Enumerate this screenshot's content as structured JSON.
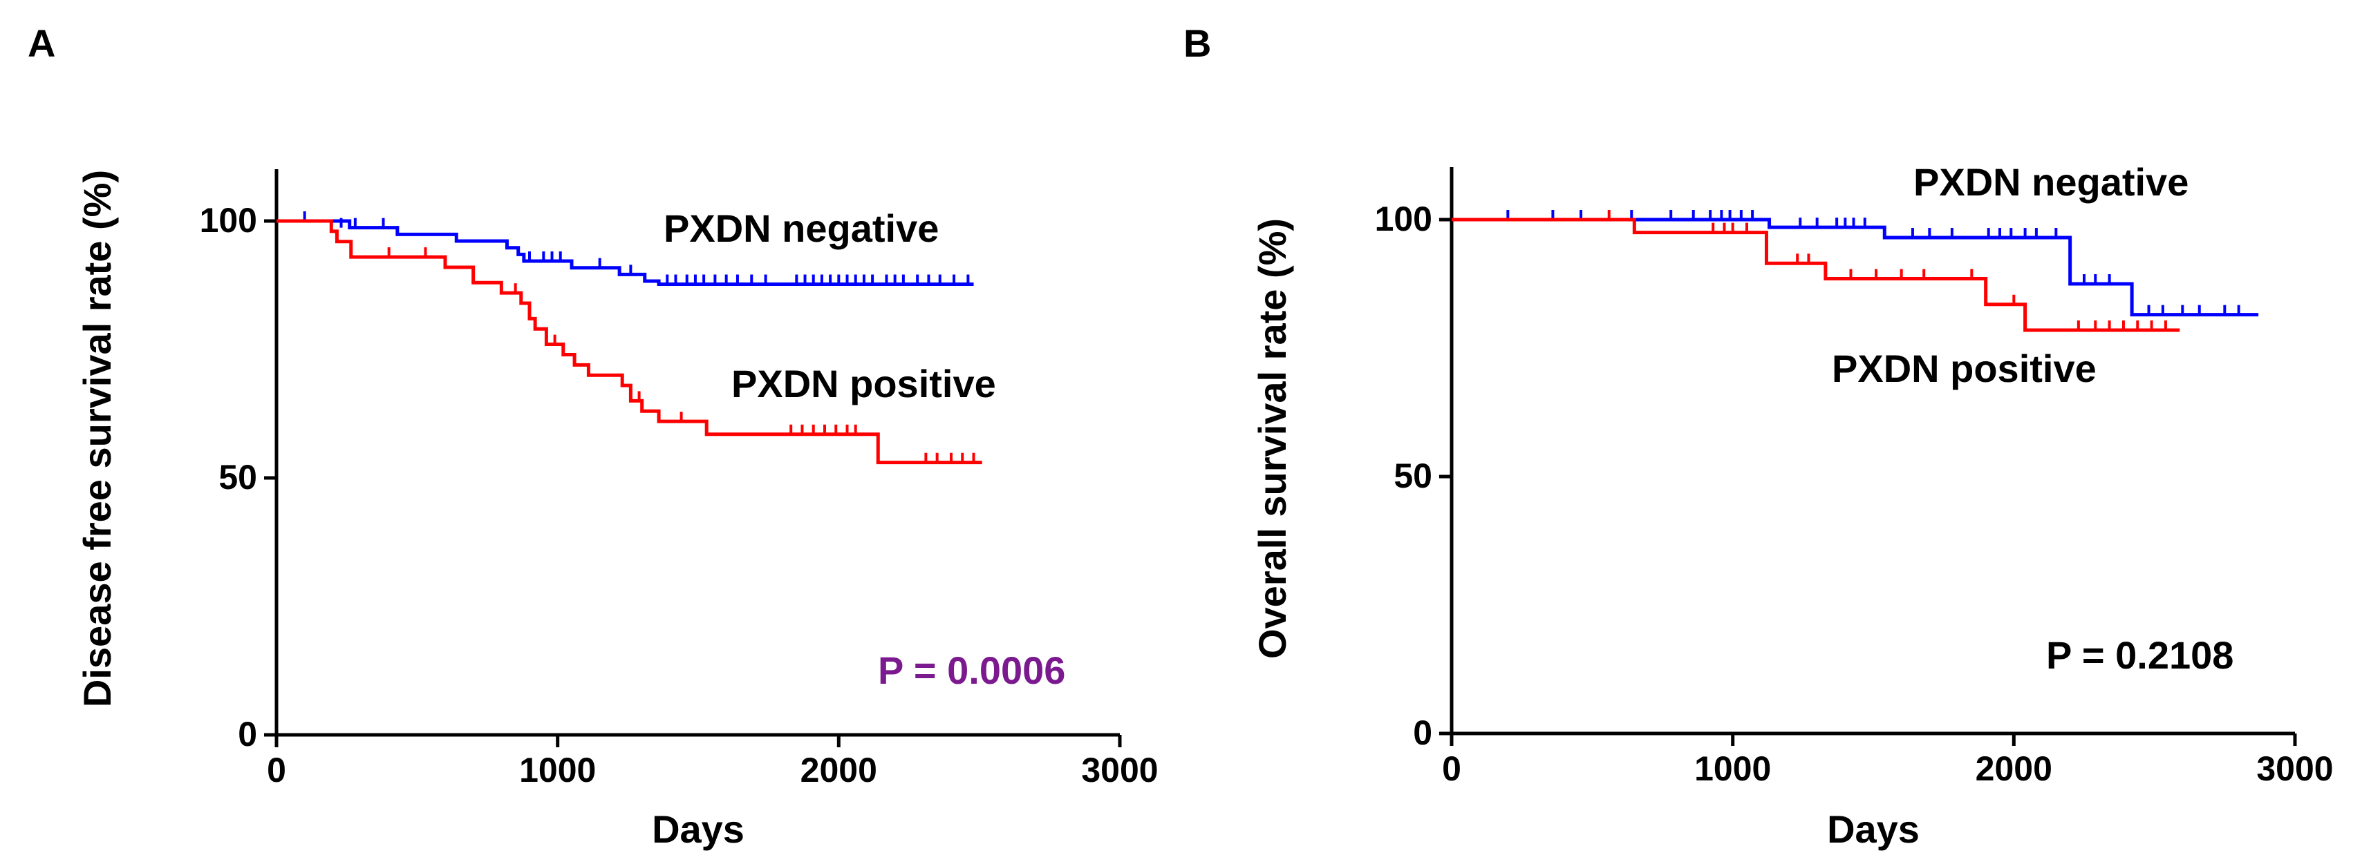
{
  "chart_data": [
    {
      "type": "line",
      "panel_label": "A",
      "xlabel": "Days",
      "ylabel": "Disease free survival rate (%)",
      "xlim": [
        0,
        3000
      ],
      "ylim": [
        0,
        110
      ],
      "xticks": [
        0,
        1000,
        2000,
        3000
      ],
      "yticks": [
        0,
        50,
        100
      ],
      "xtick_labels": [
        "0",
        "1000",
        "2000",
        "3000"
      ],
      "ytick_labels": [
        "0",
        "50",
        "100"
      ],
      "p_value": "P = 0.0006",
      "p_value_color": "#7b1a8f",
      "series": [
        {
          "name": "PXDN negative",
          "color": "#0000ff",
          "steps": [
            [
              0,
              100
            ],
            [
              260,
              98.7
            ],
            [
              430,
              97.4
            ],
            [
              640,
              96.1
            ],
            [
              820,
              94.8
            ],
            [
              860,
              93.5
            ],
            [
              880,
              92.2
            ],
            [
              1050,
              90.9
            ],
            [
              1220,
              89.6
            ],
            [
              1310,
              88.3
            ],
            [
              1360,
              87.7
            ],
            [
              2480,
              87.7
            ]
          ],
          "censors": [
            [
              100,
              100
            ],
            [
              230,
              98.7
            ],
            [
              280,
              98.7
            ],
            [
              380,
              98.7
            ],
            [
              900,
              92.2
            ],
            [
              950,
              92.2
            ],
            [
              980,
              92.2
            ],
            [
              1010,
              92.2
            ],
            [
              1150,
              90.9
            ],
            [
              1260,
              89.6
            ],
            [
              1390,
              87.7
            ],
            [
              1420,
              87.7
            ],
            [
              1460,
              87.7
            ],
            [
              1490,
              87.7
            ],
            [
              1520,
              87.7
            ],
            [
              1560,
              87.7
            ],
            [
              1600,
              87.7
            ],
            [
              1640,
              87.7
            ],
            [
              1690,
              87.7
            ],
            [
              1740,
              87.7
            ],
            [
              1850,
              87.7
            ],
            [
              1880,
              87.7
            ],
            [
              1910,
              87.7
            ],
            [
              1940,
              87.7
            ],
            [
              1970,
              87.7
            ],
            [
              2000,
              87.7
            ],
            [
              2030,
              87.7
            ],
            [
              2060,
              87.7
            ],
            [
              2090,
              87.7
            ],
            [
              2120,
              87.7
            ],
            [
              2170,
              87.7
            ],
            [
              2200,
              87.7
            ],
            [
              2230,
              87.7
            ],
            [
              2280,
              87.7
            ],
            [
              2320,
              87.7
            ],
            [
              2360,
              87.7
            ],
            [
              2410,
              87.7
            ],
            [
              2460,
              87.7
            ]
          ]
        },
        {
          "name": "PXDN positive",
          "color": "#ff0000",
          "steps": [
            [
              0,
              100
            ],
            [
              195,
              98
            ],
            [
              215,
              96
            ],
            [
              265,
              93
            ],
            [
              600,
              91
            ],
            [
              700,
              88
            ],
            [
              800,
              86
            ],
            [
              870,
              84
            ],
            [
              900,
              81
            ],
            [
              920,
              79
            ],
            [
              960,
              76
            ],
            [
              1020,
              74
            ],
            [
              1060,
              72
            ],
            [
              1110,
              70
            ],
            [
              1230,
              68
            ],
            [
              1260,
              65
            ],
            [
              1300,
              63
            ],
            [
              1360,
              61
            ],
            [
              1530,
              58.5
            ],
            [
              2140,
              53
            ],
            [
              2510,
              53
            ]
          ],
          "censors": [
            [
              400,
              93
            ],
            [
              530,
              93
            ],
            [
              850,
              86
            ],
            [
              990,
              76
            ],
            [
              1290,
              65
            ],
            [
              1440,
              61
            ],
            [
              1830,
              58.5
            ],
            [
              1870,
              58.5
            ],
            [
              1910,
              58.5
            ],
            [
              1950,
              58.5
            ],
            [
              1990,
              58.5
            ],
            [
              2030,
              58.5
            ],
            [
              2060,
              58.5
            ],
            [
              2310,
              53
            ],
            [
              2350,
              53
            ],
            [
              2400,
              53
            ],
            [
              2440,
              53
            ],
            [
              2480,
              53
            ]
          ]
        }
      ],
      "annotations": [
        "PXDN negative",
        "PXDN positive"
      ]
    },
    {
      "type": "line",
      "panel_label": "B",
      "xlabel": "Days",
      "ylabel": "Overall survival rate (%)",
      "xlim": [
        0,
        3000
      ],
      "ylim": [
        0,
        110
      ],
      "xticks": [
        0,
        1000,
        2000,
        3000
      ],
      "yticks": [
        0,
        50,
        100
      ],
      "xtick_labels": [
        "0",
        "1000",
        "2000",
        "3000"
      ],
      "ytick_labels": [
        "0",
        "50",
        "100"
      ],
      "p_value": "P = 0.2108",
      "p_value_color": "#000000",
      "series": [
        {
          "name": "PXDN negative",
          "color": "#0000ff",
          "steps": [
            [
              0,
              100
            ],
            [
              1130,
              98.5
            ],
            [
              1540,
              96.5
            ],
            [
              2200,
              87.5
            ],
            [
              2420,
              81.5
            ],
            [
              2870,
              81.5
            ]
          ],
          "censors": [
            [
              200,
              100
            ],
            [
              360,
              100
            ],
            [
              460,
              100
            ],
            [
              640,
              100
            ],
            [
              780,
              100
            ],
            [
              860,
              100
            ],
            [
              920,
              100
            ],
            [
              960,
              100
            ],
            [
              990,
              100
            ],
            [
              1030,
              100
            ],
            [
              1070,
              100
            ],
            [
              1240,
              98.5
            ],
            [
              1300,
              98.5
            ],
            [
              1370,
              98.5
            ],
            [
              1400,
              98.5
            ],
            [
              1430,
              98.5
            ],
            [
              1470,
              98.5
            ],
            [
              1640,
              96.5
            ],
            [
              1700,
              96.5
            ],
            [
              1780,
              96.5
            ],
            [
              1910,
              96.5
            ],
            [
              1950,
              96.5
            ],
            [
              1990,
              96.5
            ],
            [
              2040,
              96.5
            ],
            [
              2080,
              96.5
            ],
            [
              2150,
              96.5
            ],
            [
              2250,
              87.5
            ],
            [
              2290,
              87.5
            ],
            [
              2340,
              87.5
            ],
            [
              2480,
              81.5
            ],
            [
              2530,
              81.5
            ],
            [
              2600,
              81.5
            ],
            [
              2660,
              81.5
            ],
            [
              2750,
              81.5
            ],
            [
              2800,
              81.5
            ]
          ]
        },
        {
          "name": "PXDN positive",
          "color": "#ff0000",
          "steps": [
            [
              0,
              100
            ],
            [
              650,
              97.5
            ],
            [
              1120,
              91.5
            ],
            [
              1330,
              88.5
            ],
            [
              1900,
              83.5
            ],
            [
              2040,
              78.5
            ],
            [
              2590,
              78.5
            ]
          ],
          "censors": [
            [
              560,
              100
            ],
            [
              930,
              97.5
            ],
            [
              970,
              97.5
            ],
            [
              1000,
              97.5
            ],
            [
              1050,
              97.5
            ],
            [
              1230,
              91.5
            ],
            [
              1270,
              91.5
            ],
            [
              1420,
              88.5
            ],
            [
              1510,
              88.5
            ],
            [
              1600,
              88.5
            ],
            [
              1680,
              88.5
            ],
            [
              1850,
              88.5
            ],
            [
              2000,
              83.5
            ],
            [
              2230,
              78.5
            ],
            [
              2290,
              78.5
            ],
            [
              2340,
              78.5
            ],
            [
              2390,
              78.5
            ],
            [
              2440,
              78.5
            ],
            [
              2490,
              78.5
            ],
            [
              2540,
              78.5
            ]
          ]
        }
      ],
      "annotations": [
        "PXDN negative",
        "PXDN positive"
      ]
    }
  ]
}
